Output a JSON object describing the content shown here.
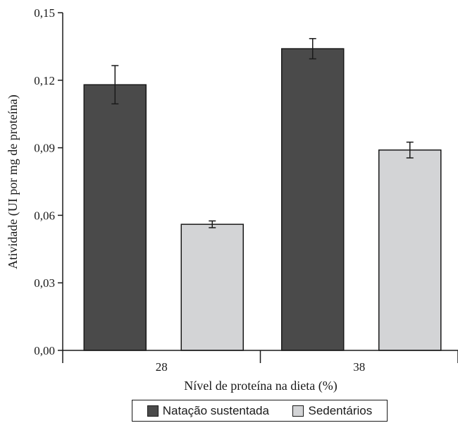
{
  "chart_data": {
    "type": "bar",
    "categories": [
      "28",
      "38"
    ],
    "series": [
      {
        "name": "Natação sustentada",
        "color": "#4a4a4a",
        "values": [
          0.118,
          0.134
        ],
        "errors": [
          0.0085,
          0.0045
        ]
      },
      {
        "name": "Sedentários",
        "color": "#d3d4d6",
        "values": [
          0.056,
          0.089
        ],
        "errors": [
          0.0015,
          0.0035
        ]
      }
    ],
    "title": "",
    "xlabel": "Nível de proteína na dieta (%)",
    "ylabel": "Atividade (UI por mg de proteína)",
    "ylim": [
      0,
      0.15
    ],
    "yticks": [
      "0,00",
      "0,03",
      "0,06",
      "0,09",
      "0,12",
      "0,15"
    ],
    "grid": false,
    "legend_position": "bottom"
  }
}
